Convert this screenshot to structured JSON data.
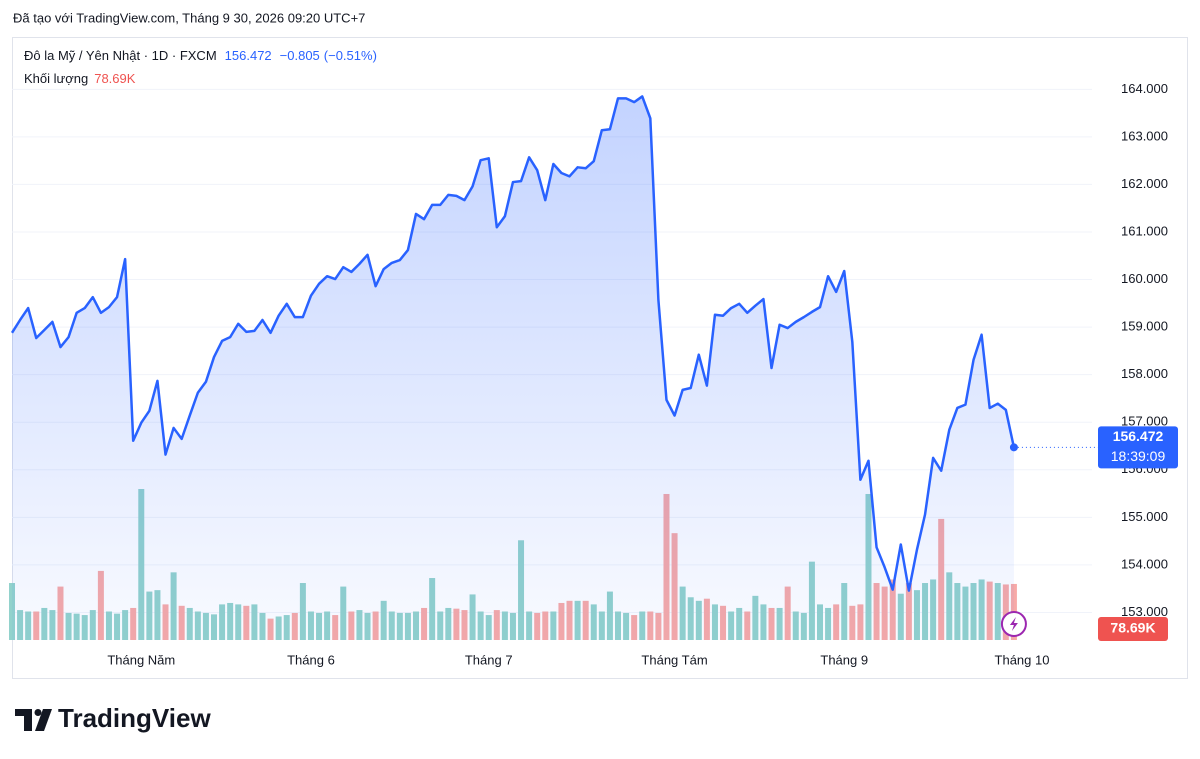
{
  "header": {
    "created": "Đã tạo với TradingView.com, Tháng 9 30, 2026 09:20 UTC+7"
  },
  "branding": {
    "logo": "TradingView"
  },
  "chart_data": {
    "type": "area",
    "color": "#2962ff",
    "grid": true,
    "change": {
      "value": -0.805,
      "label": "−0.805"
    },
    "change_percent": {
      "value": -0.51,
      "label": "(−0.51%)"
    },
    "countdown": "18:39:09",
    "categories": [
      null,
      null,
      null,
      null,
      null,
      null,
      null,
      null,
      null,
      null,
      null,
      null,
      null,
      null,
      null,
      null,
      "Tháng Năm",
      null,
      null,
      null,
      null,
      null,
      null,
      null,
      null,
      null,
      null,
      null,
      null,
      null,
      null,
      null,
      null,
      null,
      null,
      null,
      null,
      "Tháng 6",
      null,
      null,
      null,
      null,
      null,
      null,
      null,
      null,
      null,
      null,
      null,
      null,
      null,
      null,
      null,
      null,
      null,
      null,
      null,
      null,
      null,
      "Tháng 7",
      null,
      null,
      null,
      null,
      null,
      null,
      null,
      null,
      null,
      null,
      null,
      null,
      null,
      null,
      null,
      null,
      null,
      null,
      null,
      null,
      null,
      null,
      "Tháng Tám",
      null,
      null,
      null,
      null,
      null,
      null,
      null,
      null,
      null,
      null,
      null,
      null,
      null,
      null,
      null,
      null,
      null,
      null,
      null,
      null,
      "Tháng 9",
      null,
      null,
      null,
      null,
      null,
      null,
      null,
      null,
      null,
      null,
      null,
      null,
      null,
      null,
      null,
      null,
      null,
      null,
      null,
      null,
      null,
      "Tháng 10"
    ],
    "series": [
      {
        "name": "Đô la Mỹ / Yên Nhật · 1D · FXCM",
        "values": [
          158.88,
          159.15,
          159.4,
          158.77,
          158.94,
          159.11,
          158.58,
          158.79,
          159.3,
          159.4,
          159.63,
          159.3,
          159.42,
          159.63,
          160.43,
          156.61,
          156.99,
          157.24,
          157.87,
          156.32,
          156.88,
          156.65,
          157.14,
          157.62,
          157.85,
          158.37,
          158.71,
          158.79,
          159.07,
          158.9,
          158.92,
          159.15,
          158.88,
          159.24,
          159.49,
          159.21,
          159.21,
          159.66,
          159.91,
          160.07,
          160.01,
          160.26,
          160.16,
          160.33,
          160.52,
          159.86,
          160.22,
          160.35,
          160.41,
          160.62,
          161.38,
          161.27,
          161.57,
          161.57,
          161.78,
          161.76,
          161.67,
          161.96,
          162.51,
          162.55,
          161.1,
          161.33,
          162.05,
          162.07,
          162.57,
          162.3,
          161.67,
          162.43,
          162.24,
          162.17,
          162.36,
          162.34,
          162.49,
          163.14,
          163.16,
          163.81,
          163.81,
          163.73,
          163.85,
          163.39,
          159.57,
          157.47,
          157.14,
          157.68,
          157.72,
          158.42,
          157.77,
          159.26,
          159.24,
          159.4,
          159.49,
          159.3,
          159.45,
          159.59,
          158.14,
          159.05,
          158.98,
          159.11,
          159.21,
          159.32,
          159.42,
          160.07,
          159.74,
          160.18,
          158.69,
          155.79,
          156.19,
          154.37,
          153.95,
          153.48,
          154.43,
          153.46,
          154.32,
          155.06,
          156.25,
          155.98,
          156.84,
          157.3,
          157.37,
          158.31,
          158.84,
          157.3,
          157.39,
          157.26,
          156.472,
          null
        ]
      },
      {
        "name": "Khối lượng",
        "type": "bar",
        "up_color": "#92d2cc",
        "down_color": "#f7a9a7",
        "label_color": "#ef5350",
        "values": [
          80000,
          42000,
          40000,
          40000,
          45000,
          42000,
          75000,
          38000,
          37000,
          35000,
          42000,
          97000,
          40000,
          37000,
          42000,
          45000,
          212000,
          68000,
          70000,
          50000,
          95000,
          48000,
          45000,
          40000,
          38000,
          36000,
          50000,
          52000,
          50000,
          48000,
          50000,
          38000,
          30000,
          33000,
          35000,
          38000,
          80000,
          40000,
          38000,
          40000,
          35000,
          75000,
          40000,
          42000,
          38000,
          40000,
          55000,
          40000,
          38000,
          38000,
          40000,
          45000,
          87000,
          40000,
          45000,
          44000,
          42000,
          64000,
          40000,
          35000,
          42000,
          40000,
          38000,
          140000,
          40000,
          38000,
          40000,
          40000,
          52000,
          55000,
          55000,
          55000,
          50000,
          40000,
          68000,
          40000,
          38000,
          35000,
          40000,
          40000,
          38000,
          205000,
          150000,
          75000,
          60000,
          55000,
          58000,
          50000,
          48000,
          40000,
          45000,
          40000,
          62000,
          50000,
          45000,
          45000,
          75000,
          40000,
          38000,
          110000,
          50000,
          45000,
          50000,
          80000,
          48000,
          50000,
          205000,
          80000,
          75000,
          85000,
          65000,
          80000,
          70000,
          80000,
          85000,
          170000,
          95000,
          80000,
          75000,
          80000,
          85000,
          82000,
          80000,
          78000,
          78690,
          null
        ],
        "value_labels": [
          null,
          null,
          null,
          null,
          null,
          null,
          null,
          null,
          null,
          null,
          null,
          null,
          null,
          null,
          null,
          null,
          null,
          null,
          null,
          null,
          null,
          null,
          null,
          null,
          null,
          null,
          null,
          null,
          null,
          null,
          null,
          null,
          null,
          null,
          null,
          null,
          null,
          null,
          null,
          null,
          null,
          null,
          null,
          null,
          null,
          null,
          null,
          null,
          null,
          null,
          null,
          null,
          null,
          null,
          null,
          null,
          null,
          null,
          null,
          null,
          null,
          null,
          null,
          null,
          null,
          null,
          null,
          null,
          null,
          null,
          null,
          null,
          null,
          null,
          null,
          null,
          null,
          null,
          null,
          null,
          null,
          null,
          null,
          null,
          null,
          null,
          null,
          null,
          null,
          null,
          null,
          null,
          null,
          null,
          null,
          null,
          null,
          null,
          null,
          null,
          null,
          null,
          null,
          null,
          null,
          null,
          null,
          null,
          null,
          null,
          null,
          null,
          null,
          null,
          null,
          null,
          null,
          null,
          null,
          null,
          null,
          null,
          null,
          null,
          "78.69K",
          null
        ]
      }
    ],
    "ylim": [
      152.4,
      165.1
    ],
    "yticks": [
      {
        "value": 153,
        "label": "153.000"
      },
      {
        "value": 154,
        "label": "154.000"
      },
      {
        "value": 155,
        "label": "155.000"
      },
      {
        "value": 156,
        "label": "156.000"
      },
      {
        "value": 157,
        "label": "157.000"
      },
      {
        "value": 158,
        "label": "158.000"
      },
      {
        "value": 159,
        "label": "159.000"
      },
      {
        "value": 160,
        "label": "160.000"
      },
      {
        "value": 161,
        "label": "161.000"
      },
      {
        "value": 162,
        "label": "162.000"
      },
      {
        "value": 163,
        "label": "163.000"
      },
      {
        "value": 164,
        "label": "164.000"
      }
    ]
  }
}
